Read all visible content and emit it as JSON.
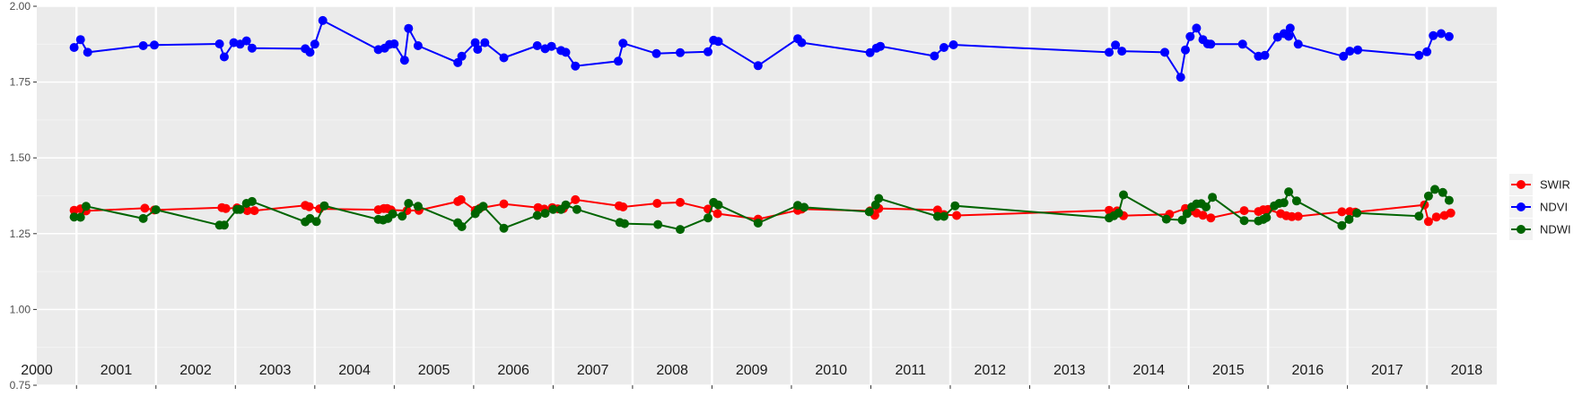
{
  "chart_data": {
    "type": "line",
    "ylim": [
      0.75,
      2.0
    ],
    "xlim": [
      2000.0,
      2018.38
    ],
    "y_ticks": [
      0.75,
      1.0,
      1.25,
      1.5,
      1.75,
      2.0
    ],
    "y_tick_labels": [
      "0.75",
      "1.00",
      "1.25",
      "1.50",
      "1.75",
      "2.00"
    ],
    "x_tick_values": [
      2000.5,
      2001.5,
      2002.5,
      2003.5,
      2004.5,
      2005.5,
      2006.5,
      2007.5,
      2008.5,
      2009.5,
      2010.5,
      2011.5,
      2012.5,
      2013.5,
      2014.5,
      2015.5,
      2016.5,
      2017.5
    ],
    "year_labels": [
      {
        "x": 2000.0,
        "label": "2000"
      },
      {
        "x": 2001.0,
        "label": "2001"
      },
      {
        "x": 2002.0,
        "label": "2002"
      },
      {
        "x": 2003.0,
        "label": "2003"
      },
      {
        "x": 2004.0,
        "label": "2004"
      },
      {
        "x": 2005.0,
        "label": "2005"
      },
      {
        "x": 2006.0,
        "label": "2006"
      },
      {
        "x": 2007.0,
        "label": "2007"
      },
      {
        "x": 2008.0,
        "label": "2008"
      },
      {
        "x": 2009.0,
        "label": "2009"
      },
      {
        "x": 2010.0,
        "label": "2010"
      },
      {
        "x": 2011.0,
        "label": "2011"
      },
      {
        "x": 2012.0,
        "label": "2012"
      },
      {
        "x": 2013.0,
        "label": "2013"
      },
      {
        "x": 2014.0,
        "label": "2014"
      },
      {
        "x": 2015.0,
        "label": "2015"
      },
      {
        "x": 2016.0,
        "label": "2016"
      },
      {
        "x": 2017.0,
        "label": "2017"
      },
      {
        "x": 2018.0,
        "label": "2018"
      }
    ],
    "grid": true,
    "legend_position": "right",
    "series": [
      {
        "name": "SWIR",
        "color": "#ff0000",
        "points": [
          [
            2000.47,
            1.327
          ],
          [
            2000.55,
            1.332
          ],
          [
            2000.62,
            1.325
          ],
          [
            2001.36,
            1.334
          ],
          [
            2001.48,
            1.328
          ],
          [
            2002.33,
            1.336
          ],
          [
            2002.38,
            1.333
          ],
          [
            2002.52,
            1.335
          ],
          [
            2002.65,
            1.326
          ],
          [
            2002.74,
            1.326
          ],
          [
            2003.38,
            1.343
          ],
          [
            2003.43,
            1.339
          ],
          [
            2003.56,
            1.332
          ],
          [
            2004.3,
            1.329
          ],
          [
            2004.37,
            1.333
          ],
          [
            2004.41,
            1.333
          ],
          [
            2004.46,
            1.328
          ],
          [
            2004.66,
            1.326
          ],
          [
            2004.81,
            1.327
          ],
          [
            2005.3,
            1.356
          ],
          [
            2005.34,
            1.362
          ],
          [
            2005.52,
            1.327
          ],
          [
            2005.58,
            1.334
          ],
          [
            2005.88,
            1.348
          ],
          [
            2006.31,
            1.336
          ],
          [
            2006.39,
            1.331
          ],
          [
            2006.49,
            1.336
          ],
          [
            2006.56,
            1.332
          ],
          [
            2006.63,
            1.333
          ],
          [
            2006.78,
            1.362
          ],
          [
            2007.33,
            1.342
          ],
          [
            2007.38,
            1.338
          ],
          [
            2007.81,
            1.35
          ],
          [
            2008.1,
            1.353
          ],
          [
            2008.45,
            1.331
          ],
          [
            2008.57,
            1.316
          ],
          [
            2009.08,
            1.298
          ],
          [
            2009.58,
            1.327
          ],
          [
            2009.63,
            1.331
          ],
          [
            2010.49,
            1.325
          ],
          [
            2010.55,
            1.311
          ],
          [
            2010.6,
            1.333
          ],
          [
            2011.34,
            1.328
          ],
          [
            2011.42,
            1.313
          ],
          [
            2011.58,
            1.31
          ],
          [
            2013.5,
            1.327
          ],
          [
            2013.6,
            1.325
          ],
          [
            2013.68,
            1.309
          ],
          [
            2014.26,
            1.314
          ],
          [
            2014.46,
            1.333
          ],
          [
            2014.53,
            1.325
          ],
          [
            2014.6,
            1.318
          ],
          [
            2014.68,
            1.311
          ],
          [
            2014.78,
            1.302
          ],
          [
            2015.2,
            1.326
          ],
          [
            2015.38,
            1.323
          ],
          [
            2015.44,
            1.329
          ],
          [
            2015.5,
            1.33
          ],
          [
            2015.66,
            1.316
          ],
          [
            2015.73,
            1.309
          ],
          [
            2015.8,
            1.306
          ],
          [
            2015.88,
            1.307
          ],
          [
            2016.43,
            1.322
          ],
          [
            2016.53,
            1.323
          ],
          [
            2016.6,
            1.321
          ],
          [
            2017.47,
            1.345
          ],
          [
            2017.52,
            1.29
          ],
          [
            2017.62,
            1.305
          ],
          [
            2017.72,
            1.31
          ],
          [
            2017.8,
            1.318
          ]
        ]
      },
      {
        "name": "NDVI",
        "color": "#0000ff",
        "points": [
          [
            2000.47,
            1.864
          ],
          [
            2000.55,
            1.89
          ],
          [
            2000.64,
            1.848
          ],
          [
            2001.34,
            1.87
          ],
          [
            2001.48,
            1.872
          ],
          [
            2002.3,
            1.876
          ],
          [
            2002.36,
            1.833
          ],
          [
            2002.48,
            1.88
          ],
          [
            2002.56,
            1.875
          ],
          [
            2002.64,
            1.886
          ],
          [
            2002.71,
            1.862
          ],
          [
            2003.38,
            1.86
          ],
          [
            2003.44,
            1.848
          ],
          [
            2003.5,
            1.875
          ],
          [
            2003.6,
            1.953
          ],
          [
            2004.3,
            1.857
          ],
          [
            2004.38,
            1.862
          ],
          [
            2004.44,
            1.874
          ],
          [
            2004.5,
            1.876
          ],
          [
            2004.63,
            1.822
          ],
          [
            2004.68,
            1.927
          ],
          [
            2004.8,
            1.87
          ],
          [
            2005.3,
            1.814
          ],
          [
            2005.35,
            1.835
          ],
          [
            2005.52,
            1.88
          ],
          [
            2005.55,
            1.858
          ],
          [
            2005.64,
            1.88
          ],
          [
            2005.88,
            1.83
          ],
          [
            2006.3,
            1.87
          ],
          [
            2006.4,
            1.86
          ],
          [
            2006.48,
            1.868
          ],
          [
            2006.6,
            1.854
          ],
          [
            2006.66,
            1.848
          ],
          [
            2006.78,
            1.803
          ],
          [
            2007.32,
            1.819
          ],
          [
            2007.38,
            1.878
          ],
          [
            2007.8,
            1.844
          ],
          [
            2008.1,
            1.847
          ],
          [
            2008.45,
            1.85
          ],
          [
            2008.52,
            1.888
          ],
          [
            2008.58,
            1.884
          ],
          [
            2009.08,
            1.804
          ],
          [
            2009.58,
            1.893
          ],
          [
            2009.63,
            1.88
          ],
          [
            2010.49,
            1.847
          ],
          [
            2010.57,
            1.862
          ],
          [
            2010.62,
            1.868
          ],
          [
            2011.3,
            1.836
          ],
          [
            2011.42,
            1.864
          ],
          [
            2011.54,
            1.873
          ],
          [
            2013.5,
            1.848
          ],
          [
            2013.58,
            1.872
          ],
          [
            2013.66,
            1.852
          ],
          [
            2014.2,
            1.848
          ],
          [
            2014.4,
            1.766
          ],
          [
            2014.46,
            1.856
          ],
          [
            2014.52,
            1.9
          ],
          [
            2014.6,
            1.928
          ],
          [
            2014.68,
            1.89
          ],
          [
            2014.74,
            1.876
          ],
          [
            2014.78,
            1.875
          ],
          [
            2015.18,
            1.875
          ],
          [
            2015.38,
            1.835
          ],
          [
            2015.46,
            1.838
          ],
          [
            2015.62,
            1.898
          ],
          [
            2015.7,
            1.91
          ],
          [
            2015.76,
            1.901
          ],
          [
            2015.78,
            1.928
          ],
          [
            2015.88,
            1.875
          ],
          [
            2016.45,
            1.835
          ],
          [
            2016.53,
            1.852
          ],
          [
            2016.63,
            1.856
          ],
          [
            2017.4,
            1.838
          ],
          [
            2017.5,
            1.85
          ],
          [
            2017.58,
            1.903
          ],
          [
            2017.68,
            1.91
          ],
          [
            2017.78,
            1.9
          ]
        ]
      },
      {
        "name": "NDWI",
        "color": "#006400",
        "points": [
          [
            2000.47,
            1.305
          ],
          [
            2000.55,
            1.304
          ],
          [
            2000.62,
            1.34
          ],
          [
            2001.34,
            1.3
          ],
          [
            2001.5,
            1.329
          ],
          [
            2002.3,
            1.278
          ],
          [
            2002.36,
            1.278
          ],
          [
            2002.52,
            1.33
          ],
          [
            2002.56,
            1.33
          ],
          [
            2002.64,
            1.35
          ],
          [
            2002.71,
            1.356
          ],
          [
            2003.38,
            1.289
          ],
          [
            2003.44,
            1.3
          ],
          [
            2003.52,
            1.29
          ],
          [
            2003.62,
            1.342
          ],
          [
            2004.3,
            1.297
          ],
          [
            2004.36,
            1.295
          ],
          [
            2004.42,
            1.3
          ],
          [
            2004.48,
            1.315
          ],
          [
            2004.6,
            1.308
          ],
          [
            2004.68,
            1.35
          ],
          [
            2004.8,
            1.34
          ],
          [
            2005.3,
            1.286
          ],
          [
            2005.35,
            1.273
          ],
          [
            2005.52,
            1.316
          ],
          [
            2005.56,
            1.33
          ],
          [
            2005.62,
            1.34
          ],
          [
            2005.88,
            1.268
          ],
          [
            2006.3,
            1.31
          ],
          [
            2006.4,
            1.317
          ],
          [
            2006.5,
            1.33
          ],
          [
            2006.6,
            1.33
          ],
          [
            2006.66,
            1.345
          ],
          [
            2006.8,
            1.33
          ],
          [
            2007.34,
            1.287
          ],
          [
            2007.4,
            1.283
          ],
          [
            2007.82,
            1.28
          ],
          [
            2008.1,
            1.264
          ],
          [
            2008.45,
            1.302
          ],
          [
            2008.52,
            1.353
          ],
          [
            2008.58,
            1.345
          ],
          [
            2009.08,
            1.285
          ],
          [
            2009.58,
            1.343
          ],
          [
            2009.66,
            1.337
          ],
          [
            2010.48,
            1.322
          ],
          [
            2010.56,
            1.345
          ],
          [
            2010.6,
            1.366
          ],
          [
            2011.34,
            1.307
          ],
          [
            2011.42,
            1.307
          ],
          [
            2011.56,
            1.342
          ],
          [
            2013.5,
            1.302
          ],
          [
            2013.56,
            1.309
          ],
          [
            2013.62,
            1.318
          ],
          [
            2013.68,
            1.378
          ],
          [
            2014.22,
            1.298
          ],
          [
            2014.42,
            1.295
          ],
          [
            2014.48,
            1.316
          ],
          [
            2014.54,
            1.338
          ],
          [
            2014.6,
            1.348
          ],
          [
            2014.66,
            1.349
          ],
          [
            2014.72,
            1.338
          ],
          [
            2014.8,
            1.37
          ],
          [
            2015.2,
            1.293
          ],
          [
            2015.38,
            1.292
          ],
          [
            2015.44,
            1.297
          ],
          [
            2015.48,
            1.303
          ],
          [
            2015.58,
            1.342
          ],
          [
            2015.64,
            1.35
          ],
          [
            2015.7,
            1.352
          ],
          [
            2015.76,
            1.388
          ],
          [
            2015.86,
            1.358
          ],
          [
            2016.43,
            1.277
          ],
          [
            2016.52,
            1.297
          ],
          [
            2016.62,
            1.318
          ],
          [
            2017.4,
            1.308
          ],
          [
            2017.52,
            1.374
          ],
          [
            2017.6,
            1.396
          ],
          [
            2017.7,
            1.386
          ],
          [
            2017.78,
            1.36
          ]
        ]
      }
    ]
  }
}
